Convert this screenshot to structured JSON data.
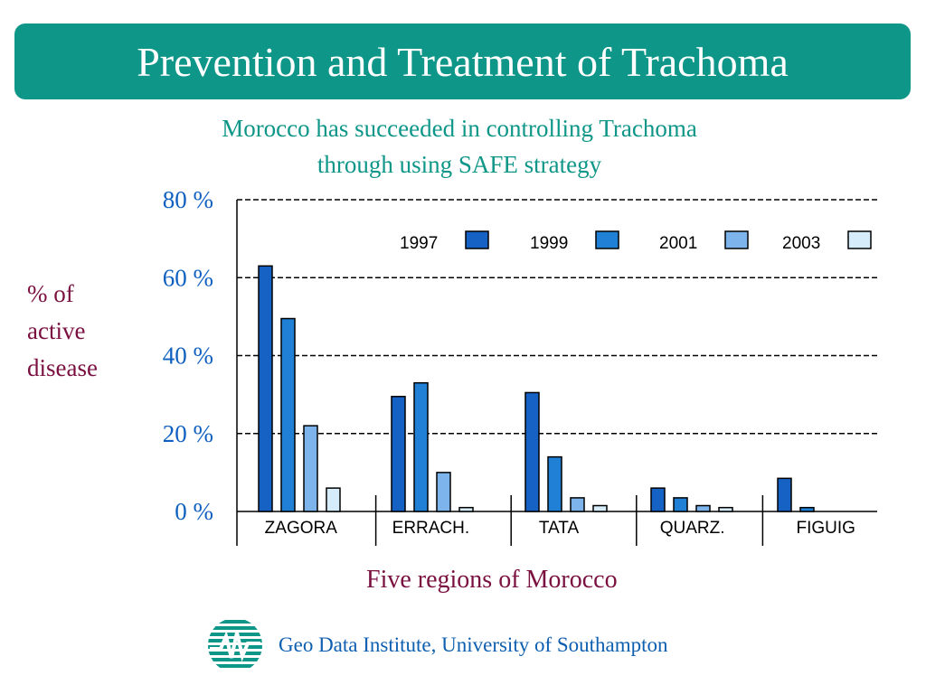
{
  "slide": {
    "title": "Prevention and Treatment of Trachoma",
    "subtitle_lines": [
      "Morocco has succeeded in controlling Trachoma",
      "through using SAFE strategy"
    ],
    "footer": "Geo Data Institute, University of Southampton",
    "colors": {
      "banner": "#0e9688",
      "subtitle": "#0e9688",
      "axis_labels": "#7a1040",
      "tick_labels": "#1060c0",
      "footer": "#0e5fb0"
    }
  },
  "chart_data": {
    "type": "bar",
    "categories": [
      "ZAGORA",
      "ERRACH.",
      "TATA",
      "QUARZ.",
      "FIGUIG"
    ],
    "series": [
      {
        "name": "1997",
        "color": "#1662c4",
        "values": [
          63,
          29.5,
          30.5,
          6,
          8.5
        ]
      },
      {
        "name": "1999",
        "color": "#1f80d6",
        "values": [
          49.5,
          33,
          14,
          3.5,
          1
        ]
      },
      {
        "name": "2001",
        "color": "#7db4ec",
        "values": [
          22,
          10,
          3.5,
          1.5,
          0
        ]
      },
      {
        "name": "2003",
        "color": "#d6ecfa",
        "values": [
          6,
          1,
          1.5,
          1,
          0
        ]
      }
    ],
    "ylabel_lines": [
      "% of",
      "active",
      "disease"
    ],
    "xlabel": "Five regions of Morocco",
    "yticks": [
      {
        "value": 0,
        "label": "0 %"
      },
      {
        "value": 20,
        "label": "20 %"
      },
      {
        "value": 40,
        "label": "40 %"
      },
      {
        "value": 60,
        "label": "60 %"
      },
      {
        "value": 80,
        "label": "80 %"
      }
    ],
    "ylim": [
      0,
      80
    ],
    "grid": true,
    "grid_style": "dashed",
    "legend_position": "top-right"
  }
}
